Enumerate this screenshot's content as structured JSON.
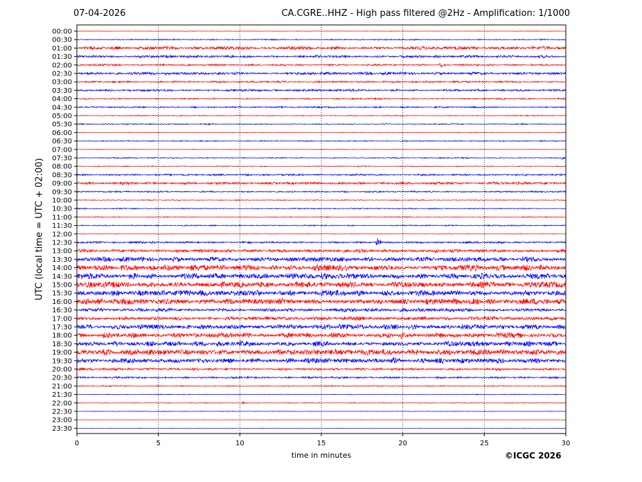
{
  "date": "07-04-2026",
  "title": "CA.CGRE..HHZ - High pass filtered @2Hz - Amplification: 1/1000",
  "copyright": "©ICGC 2026",
  "chart_data": {
    "type": "line",
    "title": "CA.CGRE..HHZ - High pass filtered @2Hz - Amplification: 1/1000",
    "xlabel": "time in minutes",
    "ylabel": "UTC (local time = UTC + 02:00)",
    "xlim": [
      0,
      30
    ],
    "x_ticks": [
      0,
      5,
      10,
      15,
      20,
      25,
      30
    ],
    "y_ticks": [
      "00:00",
      "00:30",
      "01:00",
      "01:30",
      "02:00",
      "02:30",
      "03:00",
      "03:30",
      "04:00",
      "04:30",
      "05:00",
      "05:30",
      "06:00",
      "06:30",
      "07:00",
      "07:30",
      "08:00",
      "08:30",
      "09:00",
      "09:30",
      "10:00",
      "10:30",
      "11:00",
      "11:30",
      "12:00",
      "12:30",
      "13:00",
      "13:30",
      "14:00",
      "14:30",
      "15:00",
      "15:30",
      "16:00",
      "16:30",
      "17:00",
      "17:30",
      "18:00",
      "18:30",
      "19:00",
      "19:30",
      "20:00",
      "20:30",
      "21:00",
      "21:30",
      "22:00",
      "22:30",
      "23:00",
      "23:30"
    ],
    "grid": "vertical dotted at x ticks",
    "trace_colors": [
      "#ff0000",
      "#0000ff"
    ],
    "trace_amplitude": [
      0.3,
      0.6,
      1.8,
      1.4,
      1.0,
      1.6,
      1.0,
      1.2,
      0.8,
      0.8,
      0.5,
      0.6,
      0.4,
      0.6,
      0.3,
      0.6,
      0.5,
      1.0,
      1.4,
      0.8,
      0.5,
      0.6,
      0.5,
      0.6,
      0.3,
      1.2,
      1.8,
      2.6,
      3.2,
      3.2,
      3.2,
      3.2,
      3.2,
      2.0,
      2.0,
      2.6,
      2.8,
      2.8,
      3.2,
      2.6,
      1.4,
      1.0,
      0.6,
      0.4,
      0.4,
      0.3,
      0.2,
      0.2
    ],
    "events": [
      {
        "slot": "02:00",
        "minute": 22.3,
        "strength": 5
      },
      {
        "slot": "02:30",
        "minute": 14.5,
        "strength": 2.5
      },
      {
        "slot": "07:30",
        "minute": 29.8,
        "strength": 3
      },
      {
        "slot": "12:30",
        "minute": 18.4,
        "strength": 8
      },
      {
        "slot": "12:30",
        "minute": 4.6,
        "strength": 3
      },
      {
        "slot": "13:00",
        "minute": 22.0,
        "strength": 3
      },
      {
        "slot": "15:30",
        "minute": 5.2,
        "strength": 4
      },
      {
        "slot": "16:00",
        "minute": 24.6,
        "strength": 4
      },
      {
        "slot": "18:00",
        "minute": 19.9,
        "strength": 4
      },
      {
        "slot": "18:30",
        "minute": 10.0,
        "strength": 4
      },
      {
        "slot": "19:00",
        "minute": 15.9,
        "strength": 4
      },
      {
        "slot": "19:30",
        "minute": 19.4,
        "strength": 4
      },
      {
        "slot": "20:30",
        "minute": 10.5,
        "strength": 2.5
      },
      {
        "slot": "21:00",
        "minute": 1.6,
        "strength": 2
      },
      {
        "slot": "22:00",
        "minute": 10.2,
        "strength": 2
      }
    ]
  }
}
